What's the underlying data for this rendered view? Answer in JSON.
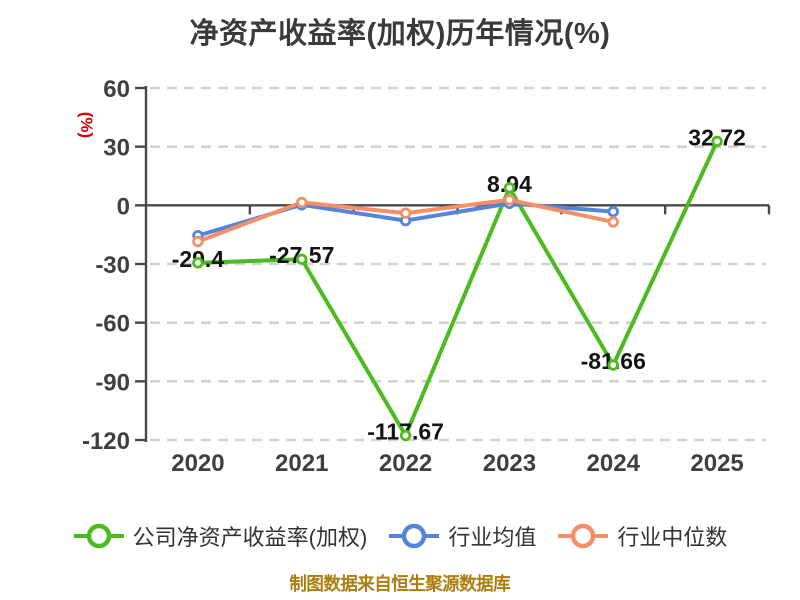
{
  "chart_data": {
    "type": "line",
    "title": "净资产收益率(加权)历年情况(%)",
    "ylabel": "(%)",
    "caption": "制图数据来自恒生聚源数据库",
    "categories": [
      "2020",
      "2021",
      "2022",
      "2023",
      "2024",
      "2025"
    ],
    "yticks": [
      60,
      30,
      0,
      -30,
      -60,
      -90,
      -120
    ],
    "ylim": [
      -120,
      60
    ],
    "grid": "horizontal-dashed",
    "legend_position": "bottom",
    "series": [
      {
        "name": "公司净资产收益率(加权)",
        "color": "#4cbb1f",
        "values": [
          -29.4,
          -27.57,
          -117.67,
          8.94,
          -81.66,
          32.72
        ],
        "labels": [
          "-29.4",
          "-27.57",
          "-117.67",
          "8.94",
          "-81.66",
          "32.72"
        ],
        "show_labels": true
      },
      {
        "name": "行业均值",
        "color": "#5584da",
        "values": [
          -15.5,
          0.3,
          -7.8,
          1.0,
          -3.2
        ],
        "labels": [],
        "show_labels": false
      },
      {
        "name": "行业中位数",
        "color": "#f59066",
        "values": [
          -18.5,
          1.5,
          -4.0,
          2.8,
          -8.5
        ],
        "labels": [],
        "show_labels": false
      }
    ],
    "colors": {
      "title_text": "#3a3a3a",
      "tick_text": "#3f3f3f",
      "data_label_text": "#131313",
      "axis": "#4a4a4a",
      "gridline": "#d2d2d2",
      "ylabel_text": "#dd0000",
      "caption_text": "#ad7d0f",
      "marker_fill": "#ffffff"
    }
  }
}
